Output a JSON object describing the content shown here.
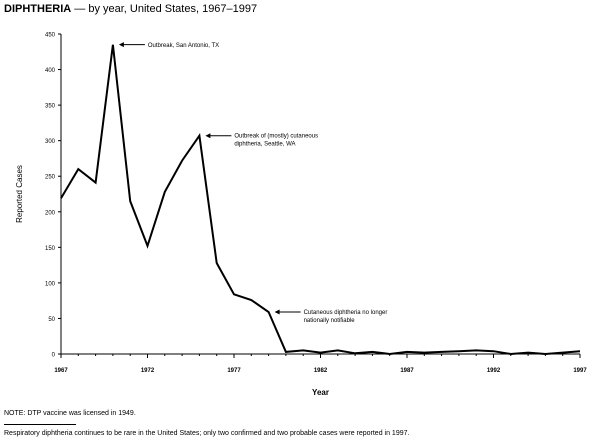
{
  "title": {
    "bold": "DIPHTHERIA",
    "rest": " — by year, United States, 1967–1997"
  },
  "chart_data": {
    "type": "line",
    "xlabel": "Year",
    "ylabel": "Reported Cases",
    "xlim": [
      1967,
      1997
    ],
    "ylim": [
      0,
      450
    ],
    "xticks": [
      1967,
      1972,
      1977,
      1982,
      1987,
      1992,
      1997
    ],
    "yticks": [
      0,
      50,
      100,
      150,
      200,
      250,
      300,
      350,
      400,
      450
    ],
    "grid": false,
    "series": [
      {
        "x": [
          1967,
          1968,
          1969,
          1970,
          1971,
          1972,
          1973,
          1974,
          1975,
          1976,
          1977,
          1978,
          1979,
          1980,
          1981,
          1982,
          1983,
          1984,
          1985,
          1986,
          1987,
          1988,
          1989,
          1990,
          1991,
          1992,
          1993,
          1994,
          1995,
          1996,
          1997
        ],
        "values": [
          219,
          260,
          241,
          435,
          215,
          152,
          228,
          272,
          307,
          128,
          84,
          76,
          59,
          3,
          5,
          2,
          5,
          1,
          3,
          0,
          3,
          2,
          3,
          4,
          5,
          4,
          0,
          2,
          0,
          2,
          4
        ]
      }
    ],
    "annotations": [
      {
        "text": "Outbreak, San Antonio, TX",
        "x": 1970,
        "y": 435
      },
      {
        "text": "Outbreak of (mostly) cutaneous",
        "text2": "diphtheria, Seattle, WA",
        "x": 1975,
        "y": 307
      },
      {
        "text": "Cutaneous diphtheria no longer",
        "text2": "nationally notifiable",
        "x": 1979,
        "y": 59
      }
    ]
  },
  "notes": [
    "NOTE: DTP vaccine was licensed in 1949.",
    "Respiratory diphtheria continues to be rare in the United States; only two confirmed and two probable cases were reported in 1997."
  ]
}
